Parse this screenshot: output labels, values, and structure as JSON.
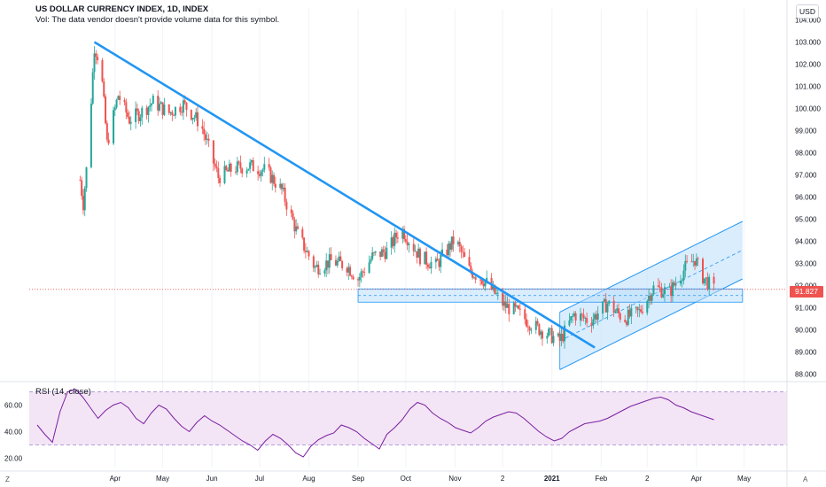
{
  "header": {
    "title": "US DOLLAR CURRENCY INDEX, 1D, INDEX",
    "volume_note": "Vol: The data vendor doesn't provide volume data for this symbol."
  },
  "currency_button": "USD",
  "price_label": "91.827",
  "rsi": {
    "label": "RSI (14, close)"
  },
  "corner": {
    "left": "Z",
    "right": "A"
  },
  "colors": {
    "up": "#26a69a",
    "down": "#ef5350",
    "trendline": "#2196f3",
    "rsi_line": "#7b1fa2",
    "rsi_band": "#f3e5f5",
    "channel": "#bbdefb"
  },
  "chart_data": [
    {
      "type": "candlestick",
      "title": "US DOLLAR CURRENCY INDEX, 1D, INDEX",
      "ylim": [
        87.7,
        104.5
      ],
      "y_ticks": [
        "104.000",
        "103.000",
        "102.000",
        "101.000",
        "100.000",
        "99.000",
        "98.000",
        "97.000",
        "96.000",
        "95.000",
        "94.000",
        "93.000",
        "92.000",
        "91.000",
        "90.000",
        "89.000",
        "88.000"
      ],
      "x_ticks": [
        "Apr",
        "May",
        "Jun",
        "Jul",
        "Aug",
        "Sep",
        "Oct",
        "Nov",
        "2",
        "2021",
        "Feb",
        "2",
        "Apr",
        "May"
      ],
      "close_path": [
        {
          "x": "Mar 9",
          "y": 97.3
        },
        {
          "x": "Mar 12",
          "y": 95.7
        },
        {
          "x": "Mar 15",
          "y": 98.0
        },
        {
          "x": "Mar 19",
          "y": 102.8
        },
        {
          "x": "Mar 23",
          "y": 102.0
        },
        {
          "x": "Mar 27",
          "y": 98.4
        },
        {
          "x": "Apr 3",
          "y": 100.6
        },
        {
          "x": "Apr 10",
          "y": 99.5
        },
        {
          "x": "Apr 17",
          "y": 99.8
        },
        {
          "x": "Apr 25",
          "y": 100.3
        },
        {
          "x": "May 5",
          "y": 99.8
        },
        {
          "x": "May 14",
          "y": 100.2
        },
        {
          "x": "May 25",
          "y": 99.3
        },
        {
          "x": "Jun 5",
          "y": 96.9
        },
        {
          "x": "Jun 15",
          "y": 97.3
        },
        {
          "x": "Jun 25",
          "y": 97.4
        },
        {
          "x": "Jul 5",
          "y": 97.2
        },
        {
          "x": "Jul 15",
          "y": 96.3
        },
        {
          "x": "Jul 25",
          "y": 94.3
        },
        {
          "x": "Aug 5",
          "y": 92.8
        },
        {
          "x": "Aug 15",
          "y": 93.1
        },
        {
          "x": "Aug 25",
          "y": 92.9
        },
        {
          "x": "Sep 1",
          "y": 92.3
        },
        {
          "x": "Sep 10",
          "y": 93.3
        },
        {
          "x": "Sep 20",
          "y": 93.6
        },
        {
          "x": "Sep 28",
          "y": 94.6
        },
        {
          "x": "Oct 10",
          "y": 93.3
        },
        {
          "x": "Oct 20",
          "y": 92.9
        },
        {
          "x": "Nov 1",
          "y": 94.1
        },
        {
          "x": "Nov 10",
          "y": 92.7
        },
        {
          "x": "Nov 20",
          "y": 92.2
        },
        {
          "x": "Dec 2",
          "y": 91.1
        },
        {
          "x": "Dec 10",
          "y": 90.8
        },
        {
          "x": "Dec 20",
          "y": 90.2
        },
        {
          "x": "Jan 6",
          "y": 89.5
        },
        {
          "x": "Jan 15",
          "y": 90.7
        },
        {
          "x": "Jan 25",
          "y": 90.4
        },
        {
          "x": "Feb 5",
          "y": 91.2
        },
        {
          "x": "Feb 15",
          "y": 90.5
        },
        {
          "x": "Feb 25",
          "y": 90.8
        },
        {
          "x": "Mar 5",
          "y": 91.9
        },
        {
          "x": "Mar 15",
          "y": 91.7
        },
        {
          "x": "Mar 25",
          "y": 92.8
        },
        {
          "x": "Mar 31",
          "y": 93.2
        },
        {
          "x": "Apr 5",
          "y": 92.4
        },
        {
          "x": "Apr 12",
          "y": 91.8
        }
      ],
      "last_price": 91.827,
      "drawings": {
        "trendline": {
          "start": {
            "x": "Mar 19",
            "y": 103.0
          },
          "end": {
            "x": "Jan 28",
            "y": 89.2
          }
        },
        "horizontal_zone": {
          "from": "Sep 1",
          "to": "Apr 30",
          "top": 91.85,
          "bottom": 91.25
        },
        "parallel_channel": {
          "from": "Jan 6",
          "to": "Apr 30",
          "upper_start": 90.8,
          "upper_end": 94.9,
          "lower_start": 88.2,
          "lower_end": 92.3
        }
      }
    },
    {
      "type": "line",
      "title": "RSI (14, close)",
      "ylim": [
        13,
        77
      ],
      "y_ticks": [
        "60.00",
        "40.00",
        "20.00"
      ],
      "band": [
        30,
        70
      ],
      "values": [
        45,
        38,
        32,
        55,
        70,
        72,
        66,
        58,
        50,
        56,
        60,
        62,
        58,
        50,
        46,
        54,
        60,
        57,
        50,
        44,
        40,
        47,
        52,
        48,
        45,
        41,
        37,
        33,
        30,
        26,
        33,
        38,
        35,
        30,
        24,
        21,
        29,
        34,
        37,
        39,
        45,
        43,
        40,
        35,
        31,
        27,
        38,
        43,
        49,
        57,
        62,
        60,
        54,
        50,
        47,
        43,
        41,
        39,
        43,
        48,
        51,
        53,
        55,
        54,
        50,
        45,
        40,
        36,
        33,
        35,
        40,
        43,
        46,
        47,
        48,
        50,
        53,
        56,
        59,
        61,
        63,
        65,
        66,
        64,
        60,
        58,
        55,
        53,
        51,
        49
      ]
    }
  ]
}
